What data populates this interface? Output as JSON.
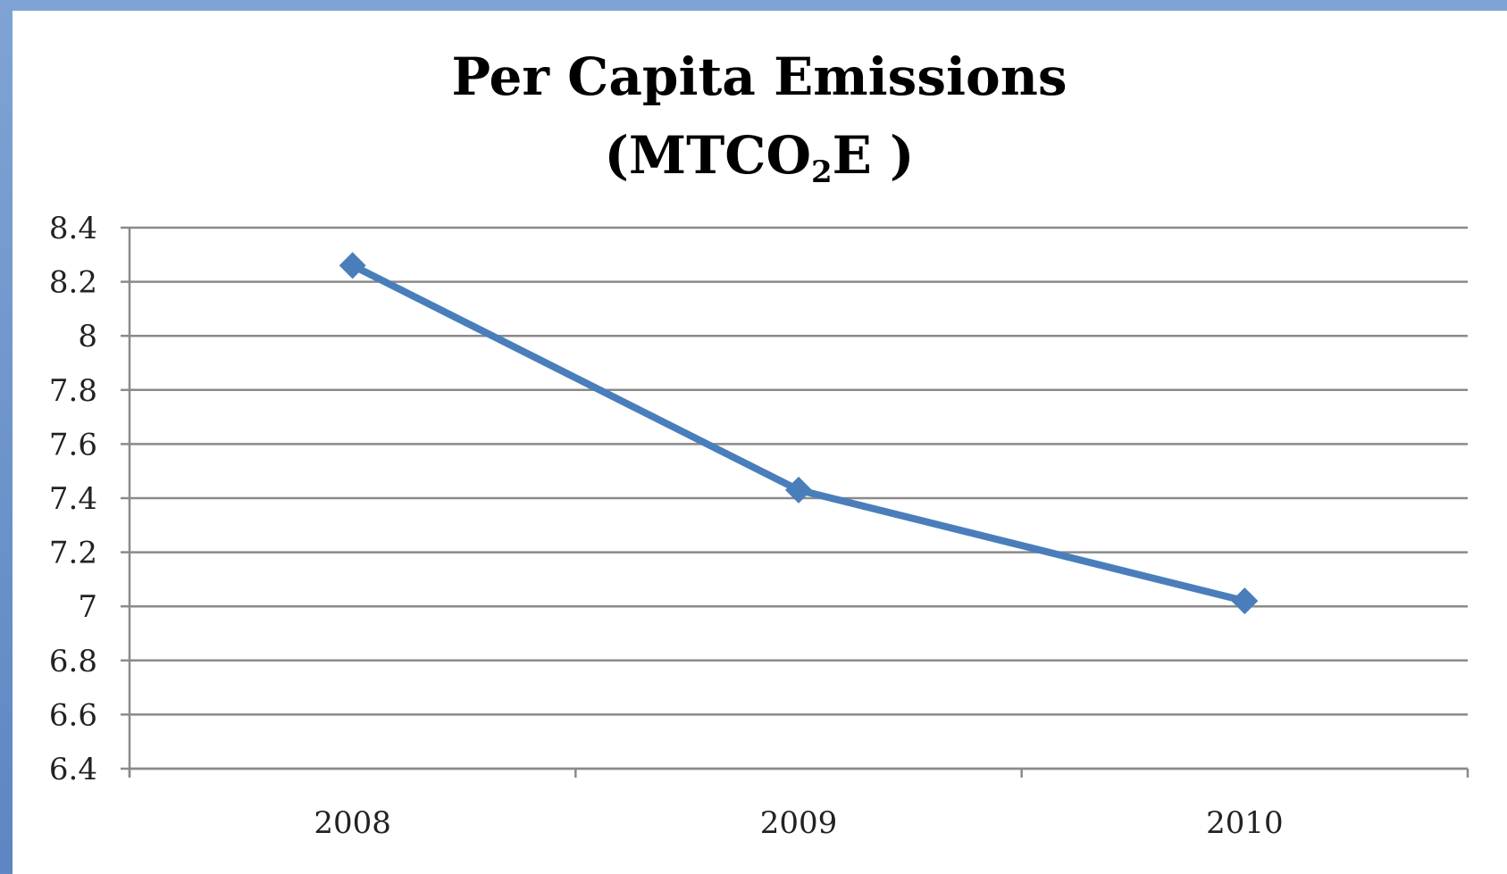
{
  "chart_data": {
    "type": "line",
    "title": "Per Capita Emissions",
    "title_line2_prefix": "(MTCO",
    "title_line2_sub": "2",
    "title_line2_suffix": "E )",
    "categories": [
      "2008",
      "2009",
      "2010"
    ],
    "series": [
      {
        "values": [
          8.26,
          7.43,
          7.02
        ],
        "color": "#4a7ebb",
        "marker": "diamond"
      }
    ],
    "ylim": [
      6.4,
      8.4
    ],
    "y_ticks": [
      "8.4",
      "8.2",
      "8",
      "7.8",
      "7.6",
      "7.4",
      "7.2",
      "7",
      "6.8",
      "6.6",
      "6.4"
    ],
    "grid": true,
    "legend": "none"
  }
}
